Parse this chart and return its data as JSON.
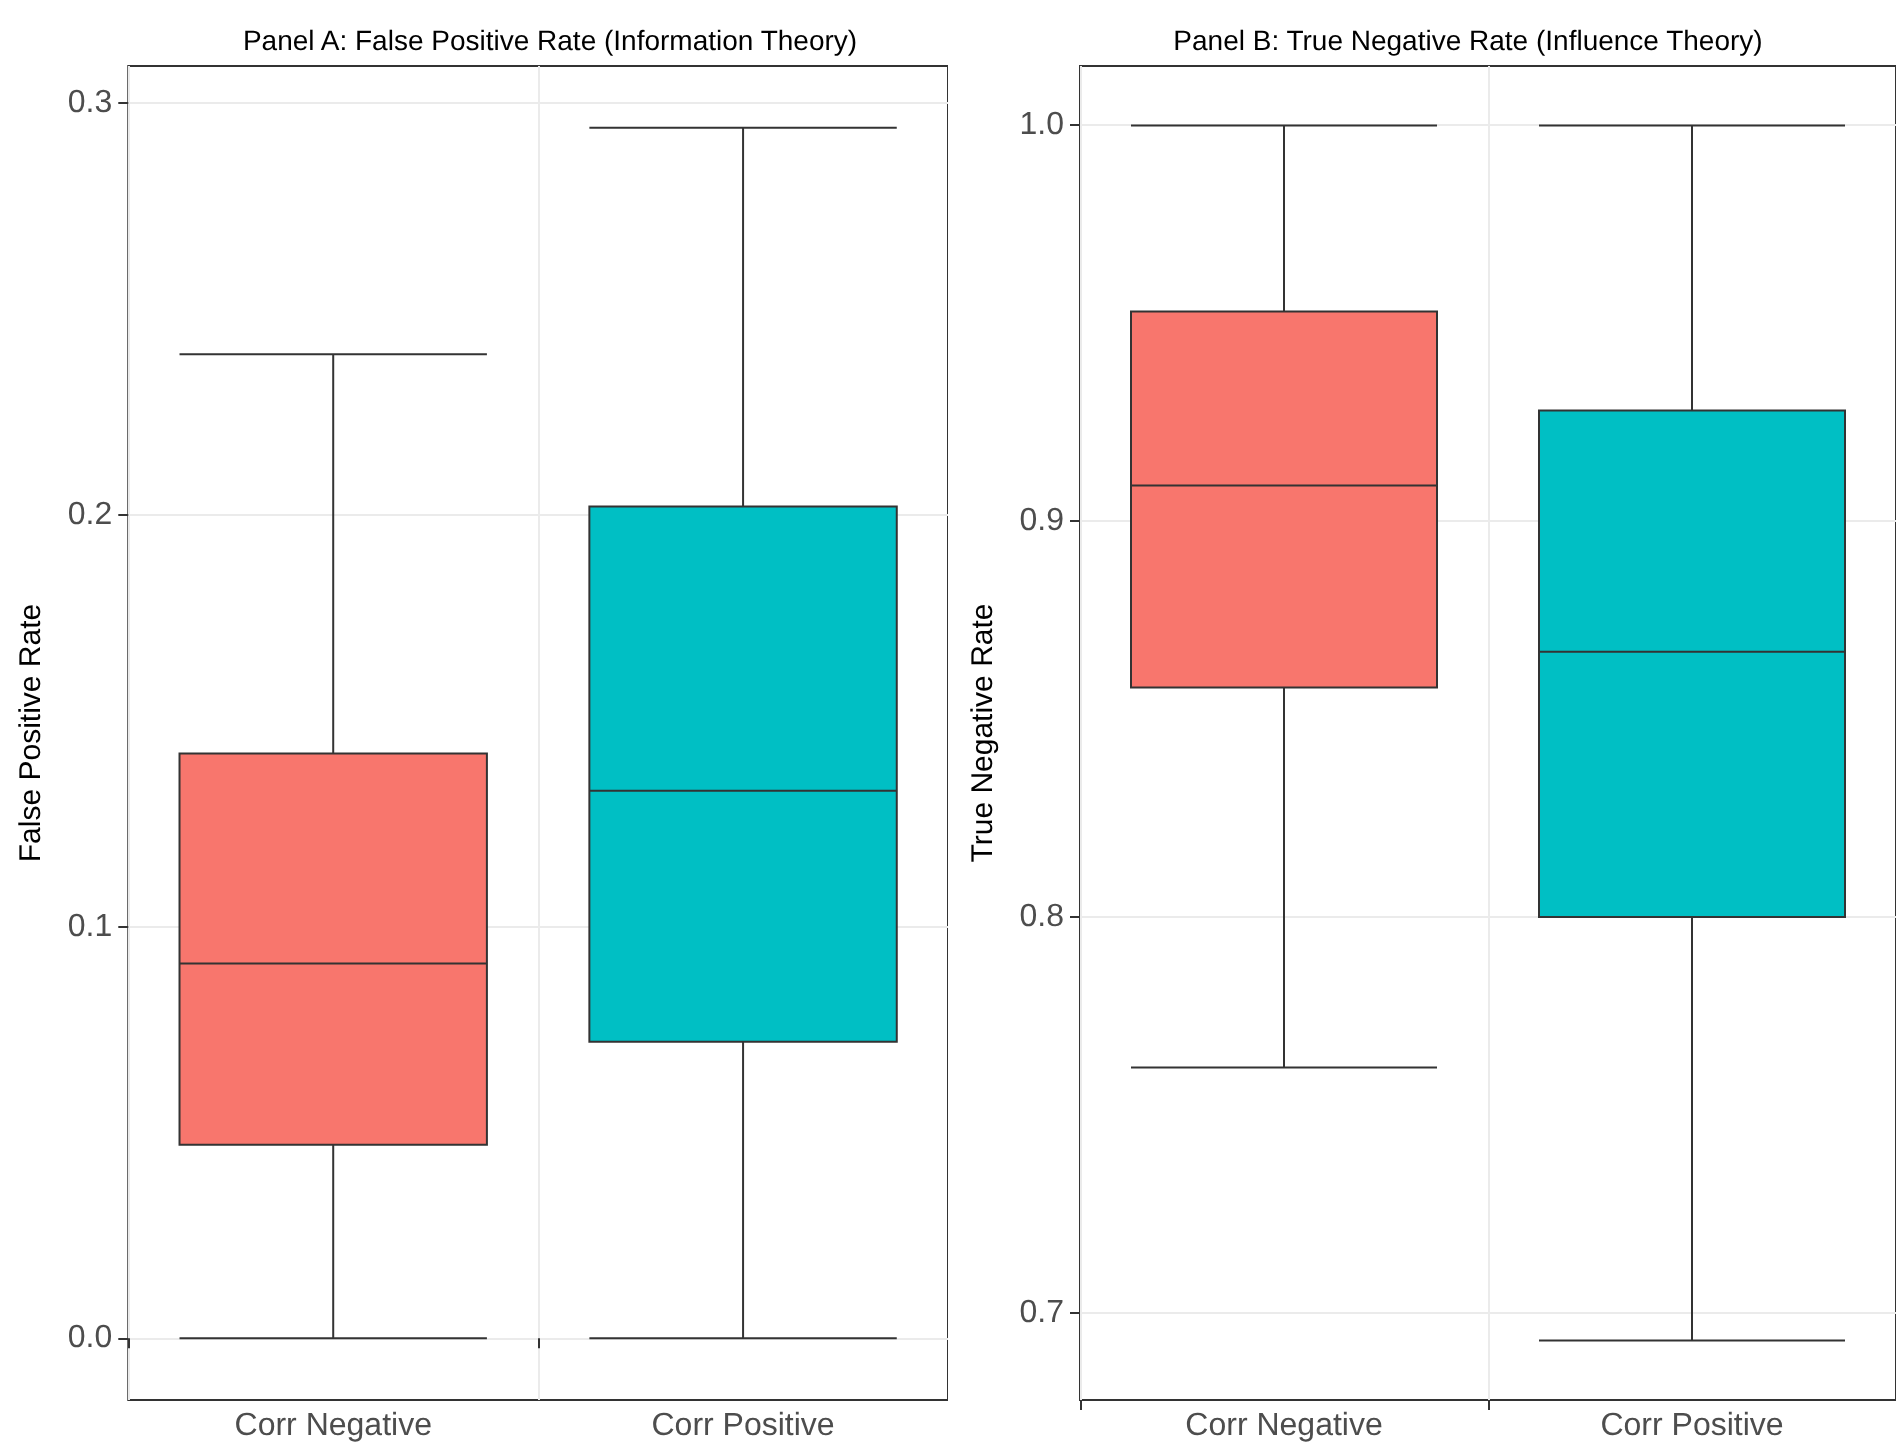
{
  "chart_data": [
    {
      "type": "box",
      "title": "Panel A: False Positive Rate (Information Theory)",
      "ylabel": "False Positive Rate",
      "categories": [
        "Corr Negative",
        "Corr Positive"
      ],
      "colors": [
        "#f8766d",
        "#00bfc4"
      ],
      "boxes": [
        {
          "low": 0,
          "q1": 0.047,
          "median": 0.091,
          "q3": 0.142,
          "high": 0.239
        },
        {
          "low": 0,
          "q1": 0.072,
          "median": 0.133,
          "q3": 0.202,
          "high": 0.294
        }
      ],
      "ylim": [
        -0.015,
        0.309
      ],
      "yticks": [
        {
          "value": 0,
          "label": "0.0"
        },
        {
          "value": 0.1,
          "label": "0.1"
        },
        {
          "value": 0.2,
          "label": "0.2"
        },
        {
          "value": 0.3,
          "label": "0.3"
        }
      ],
      "grid": true
    },
    {
      "type": "box",
      "title": "Panel B: True Negative Rate (Influence Theory)",
      "ylabel": "True Negative Rate",
      "categories": [
        "Corr Negative",
        "Corr Positive"
      ],
      "colors": [
        "#f8766d",
        "#00bfc4"
      ],
      "boxes": [
        {
          "low": 0.762,
          "q1": 0.858,
          "median": 0.909,
          "q3": 0.953,
          "high": 1.0
        },
        {
          "low": 0.693,
          "q1": 0.8,
          "median": 0.867,
          "q3": 0.928,
          "high": 1.0
        }
      ],
      "ylim": [
        0.678,
        1.015
      ],
      "yticks": [
        {
          "value": 0.7,
          "label": "0.7"
        },
        {
          "value": 0.8,
          "label": "0.8"
        },
        {
          "value": 0.9,
          "label": "0.9"
        },
        {
          "value": 1.0,
          "label": "1.0"
        }
      ],
      "grid": true
    }
  ]
}
